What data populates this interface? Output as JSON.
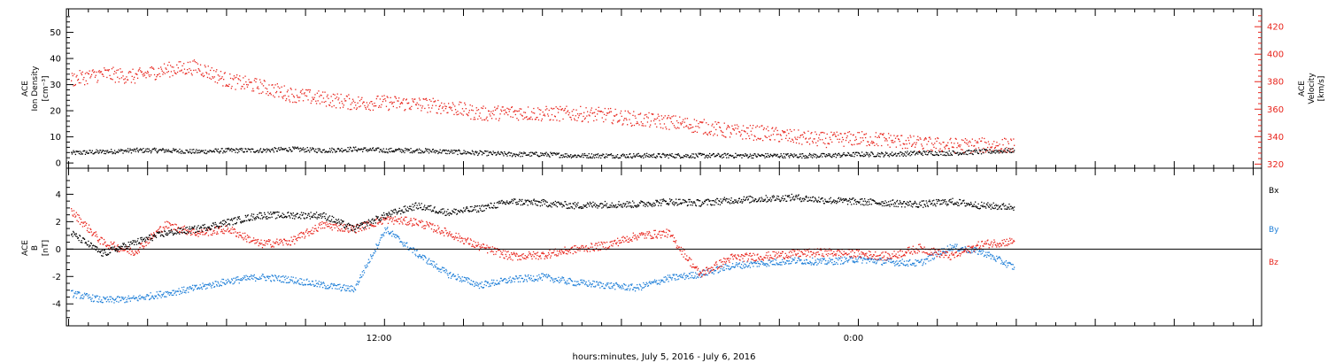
{
  "colors": {
    "black": "#000000",
    "red": "#e8241c",
    "blue": "#1f7fd8"
  },
  "chart_data": [
    {
      "type": "scatter",
      "panel": "top",
      "xlabel": "hours:minutes, July  5, 2016 - July  6, 2016",
      "x_tick_labels": [
        "12:00",
        "0:00"
      ],
      "left_axis": {
        "label_lines": [
          "ACE",
          "Ion Density",
          "[cm⁻³]"
        ],
        "ylim": [
          -2,
          59
        ],
        "ticks": [
          0,
          10,
          20,
          30,
          40,
          50
        ]
      },
      "right_axis": {
        "label_lines": [
          "ACE",
          "Velocity",
          "[km/s]"
        ],
        "ylim": [
          317,
          433
        ],
        "ticks": [
          320,
          340,
          360,
          380,
          400,
          420
        ]
      },
      "series": [
        {
          "color": "black",
          "axis": "left",
          "points": [
            [
              0,
              4
            ],
            [
              1,
              4.5
            ],
            [
              2,
              5
            ],
            [
              3,
              5
            ],
            [
              4,
              4.5
            ],
            [
              5,
              5
            ],
            [
              6,
              5
            ],
            [
              7,
              5.5
            ],
            [
              8,
              5
            ],
            [
              9,
              5.5
            ],
            [
              10,
              5
            ],
            [
              11,
              5
            ],
            [
              12,
              4.5
            ],
            [
              13,
              4
            ],
            [
              14,
              3.5
            ],
            [
              15,
              3.5
            ],
            [
              16,
              3
            ],
            [
              17,
              3
            ],
            [
              18,
              3
            ],
            [
              19,
              3
            ],
            [
              20,
              3
            ],
            [
              21,
              3
            ],
            [
              22,
              3
            ],
            [
              23,
              3
            ],
            [
              24,
              3
            ],
            [
              25,
              3.5
            ],
            [
              26,
              3.5
            ],
            [
              27,
              4
            ],
            [
              28,
              4
            ],
            [
              29,
              4.5
            ],
            [
              30,
              5
            ]
          ]
        },
        {
          "color": "red",
          "axis": "right",
          "points": [
            [
              0,
              382
            ],
            [
              1,
              386
            ],
            [
              2,
              384
            ],
            [
              3,
              389
            ],
            [
              4,
              391
            ],
            [
              5,
              381
            ],
            [
              6,
              377
            ],
            [
              7,
              371
            ],
            [
              8,
              368
            ],
            [
              9,
              365
            ],
            [
              10,
              365
            ],
            [
              11,
              364
            ],
            [
              12,
              362
            ],
            [
              13,
              357
            ],
            [
              14,
              358
            ],
            [
              15,
              357
            ],
            [
              16,
              357
            ],
            [
              17,
              356
            ],
            [
              18,
              353
            ],
            [
              19,
              351
            ],
            [
              20,
              348
            ],
            [
              21,
              344
            ],
            [
              22,
              343
            ],
            [
              23,
              340
            ],
            [
              24,
              338
            ],
            [
              25,
              339
            ],
            [
              26,
              338
            ],
            [
              27,
              335
            ],
            [
              28,
              334
            ],
            [
              29,
              334
            ],
            [
              30,
              334
            ]
          ]
        }
      ]
    },
    {
      "type": "scatter",
      "panel": "bottom",
      "left_axis": {
        "label_lines": [
          "ACE",
          "B",
          "[nT]"
        ],
        "ylim": [
          -5.6,
          5.9
        ],
        "ticks": [
          -4,
          -2,
          0,
          2,
          4
        ]
      },
      "series": [
        {
          "name": "Bx",
          "color": "black",
          "points": [
            [
              0,
              1.2
            ],
            [
              1,
              -0.3
            ],
            [
              2,
              0.5
            ],
            [
              3,
              1.2
            ],
            [
              4,
              1.5
            ],
            [
              5,
              2.0
            ],
            [
              6,
              2.5
            ],
            [
              7,
              2.5
            ],
            [
              8,
              2.5
            ],
            [
              9,
              1.5
            ],
            [
              10,
              2.5
            ],
            [
              11,
              3.2
            ],
            [
              12,
              2.7
            ],
            [
              13,
              3.0
            ],
            [
              14,
              3.5
            ],
            [
              15,
              3.4
            ],
            [
              16,
              3.2
            ],
            [
              17,
              3.3
            ],
            [
              18,
              3.3
            ],
            [
              19,
              3.5
            ],
            [
              20,
              3.4
            ],
            [
              21,
              3.6
            ],
            [
              22,
              3.7
            ],
            [
              23,
              3.8
            ],
            [
              24,
              3.6
            ],
            [
              25,
              3.5
            ],
            [
              26,
              3.4
            ],
            [
              27,
              3.3
            ],
            [
              28,
              3.5
            ],
            [
              29,
              3.2
            ],
            [
              30,
              3.1
            ]
          ]
        },
        {
          "name": "By",
          "color": "blue",
          "points": [
            [
              0,
              -3.2
            ],
            [
              1,
              -3.7
            ],
            [
              2,
              -3.6
            ],
            [
              3,
              -3.2
            ],
            [
              4,
              -2.8
            ],
            [
              5,
              -2.3
            ],
            [
              6,
              -2.0
            ],
            [
              7,
              -2.2
            ],
            [
              8,
              -2.6
            ],
            [
              9,
              -2.9
            ],
            [
              10,
              1.5
            ],
            [
              11,
              -0.3
            ],
            [
              12,
              -1.8
            ],
            [
              13,
              -2.6
            ],
            [
              14,
              -2.2
            ],
            [
              15,
              -2.0
            ],
            [
              16,
              -2.4
            ],
            [
              17,
              -2.6
            ],
            [
              18,
              -2.8
            ],
            [
              19,
              -2.1
            ],
            [
              20,
              -1.8
            ],
            [
              21,
              -1.2
            ],
            [
              22,
              -1.0
            ],
            [
              23,
              -0.8
            ],
            [
              24,
              -0.9
            ],
            [
              25,
              -0.7
            ],
            [
              26,
              -0.9
            ],
            [
              27,
              -1.0
            ],
            [
              28,
              0.2
            ],
            [
              29,
              -0.2
            ],
            [
              30,
              -1.3
            ]
          ]
        },
        {
          "name": "Bz",
          "color": "red",
          "points": [
            [
              0,
              2.8
            ],
            [
              1,
              0.5
            ],
            [
              2,
              -0.2
            ],
            [
              3,
              1.8
            ],
            [
              4,
              1.2
            ],
            [
              5,
              1.5
            ],
            [
              6,
              0.4
            ],
            [
              7,
              0.6
            ],
            [
              8,
              1.8
            ],
            [
              9,
              1.5
            ],
            [
              10,
              2.2
            ],
            [
              11,
              2.0
            ],
            [
              12,
              1.2
            ],
            [
              13,
              0.2
            ],
            [
              14,
              -0.5
            ],
            [
              15,
              -0.4
            ],
            [
              16,
              0.0
            ],
            [
              17,
              0.3
            ],
            [
              18,
              1.0
            ],
            [
              19,
              1.2
            ],
            [
              20,
              -1.8
            ],
            [
              21,
              -0.6
            ],
            [
              22,
              -0.5
            ],
            [
              23,
              -0.3
            ],
            [
              24,
              -0.2
            ],
            [
              25,
              -0.3
            ],
            [
              26,
              -0.5
            ],
            [
              27,
              0.1
            ],
            [
              28,
              -0.5
            ],
            [
              29,
              0.4
            ],
            [
              30,
              0.6
            ]
          ]
        }
      ]
    }
  ]
}
